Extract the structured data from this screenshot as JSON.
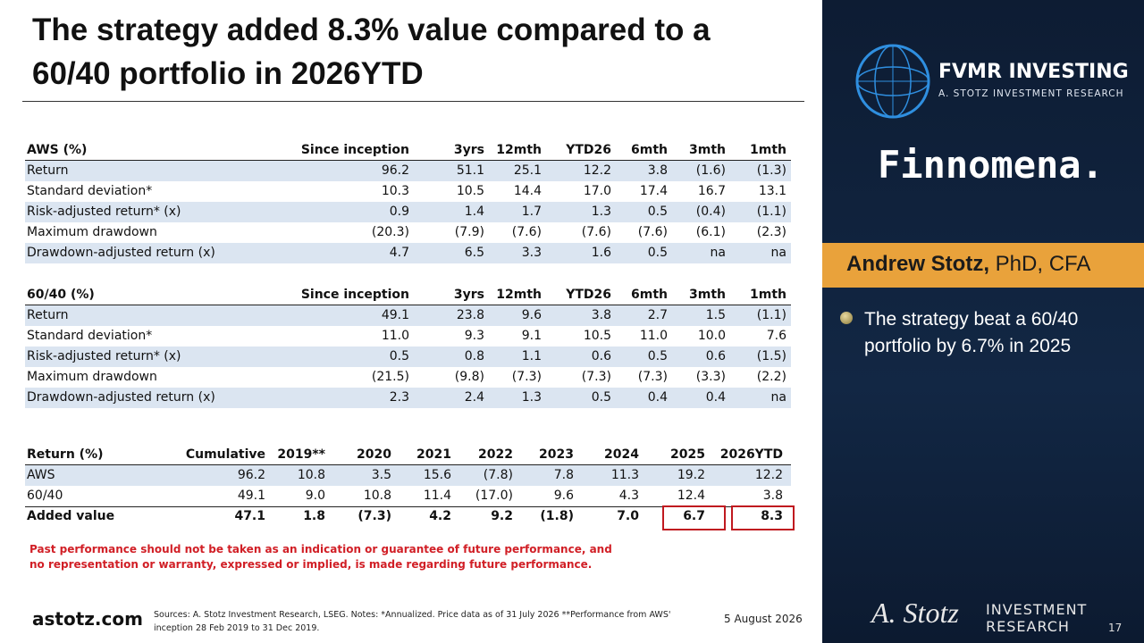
{
  "header": {
    "title_line1": "The strategy added 8.3% value compared to a",
    "title_line2": "60/40 portfolio in 2026YTD"
  },
  "tables": [
    {
      "header": [
        "AWS (%)",
        "Since inception",
        "3yrs",
        "12mth",
        "YTD26",
        "6mth",
        "3mth",
        "1mth"
      ],
      "rows": [
        [
          "Return",
          "96.2",
          "51.1",
          "25.1",
          "12.2",
          "3.8",
          "(1.6)",
          "(1.3)"
        ],
        [
          "Standard deviation*",
          "10.3",
          "10.5",
          "14.4",
          "17.0",
          "17.4",
          "16.7",
          "13.1"
        ],
        [
          "Risk-adjusted return* (x)",
          "0.9",
          "1.4",
          "1.7",
          "1.3",
          "0.5",
          "(0.4)",
          "(1.1)"
        ],
        [
          "Maximum drawdown",
          "(20.3)",
          "(7.9)",
          "(7.6)",
          "(7.6)",
          "(7.6)",
          "(6.1)",
          "(2.3)"
        ],
        [
          "Drawdown-adjusted return (x)",
          "4.7",
          "6.5",
          "3.3",
          "1.6",
          "0.5",
          "na",
          "na"
        ]
      ]
    },
    {
      "header": [
        "60/40 (%)",
        "Since inception",
        "3yrs",
        "12mth",
        "YTD26",
        "6mth",
        "3mth",
        "1mth"
      ],
      "rows": [
        [
          "Return",
          "49.1",
          "23.8",
          "9.6",
          "3.8",
          "2.7",
          "1.5",
          "(1.1)"
        ],
        [
          "Standard deviation*",
          "11.0",
          "9.3",
          "9.1",
          "10.5",
          "11.0",
          "10.0",
          "7.6"
        ],
        [
          "Risk-adjusted return* (x)",
          "0.5",
          "0.8",
          "1.1",
          "0.6",
          "0.5",
          "0.6",
          "(1.5)"
        ],
        [
          "Maximum drawdown",
          "(21.5)",
          "(9.8)",
          "(7.3)",
          "(7.3)",
          "(7.3)",
          "(3.3)",
          "(2.2)"
        ],
        [
          "Drawdown-adjusted return (x)",
          "2.3",
          "2.4",
          "1.3",
          "0.5",
          "0.4",
          "0.4",
          "na"
        ]
      ]
    },
    {
      "header": [
        "Return (%)",
        "Cumulative",
        "2019**",
        "2020",
        "2021",
        "2022",
        "2023",
        "2024",
        "2025",
        "2026YTD"
      ],
      "rows": [
        [
          "AWS",
          "96.2",
          "10.8",
          "3.5",
          "15.6",
          "(7.8)",
          "7.8",
          "11.3",
          "19.2",
          "12.2"
        ],
        [
          "60/40",
          "49.1",
          "9.0",
          "10.8",
          "11.4",
          "(17.0)",
          "9.6",
          "4.3",
          "12.4",
          "3.8"
        ],
        [
          "Added value",
          "47.1",
          "1.8",
          "(7.3)",
          "4.2",
          "9.2",
          "(1.8)",
          "7.0",
          "6.7",
          "8.3"
        ]
      ]
    }
  ],
  "disclaimer": [
    "Past performance should not be taken as an indication or guarantee of future performance, and",
    "no representation or warranty, expressed or implied, is made regarding future performance."
  ],
  "footer": {
    "site": "astotz.com",
    "sources": [
      "Sources: A. Stotz Investment Research, LSEG. Notes: *Annualized. Price data as of 31 July 2026 **Performance from AWS'",
      "inception 28 Feb 2019 to 31 Dec 2019."
    ],
    "date": "5 August 2026",
    "page": "17"
  },
  "panel": {
    "brand": "FVMR INVESTING",
    "brand_sub": "A. STOTZ INVESTMENT RESEARCH",
    "partner": "Finnomena.",
    "name": "Andrew Stotz,",
    "credentials": "PhD, CFA",
    "bullet": "The strategy beat a 60/40 portfolio by 6.7% in 2025",
    "signature": "A. Stotz",
    "research_line1": "INVESTMENT",
    "research_line2": "RESEARCH"
  }
}
